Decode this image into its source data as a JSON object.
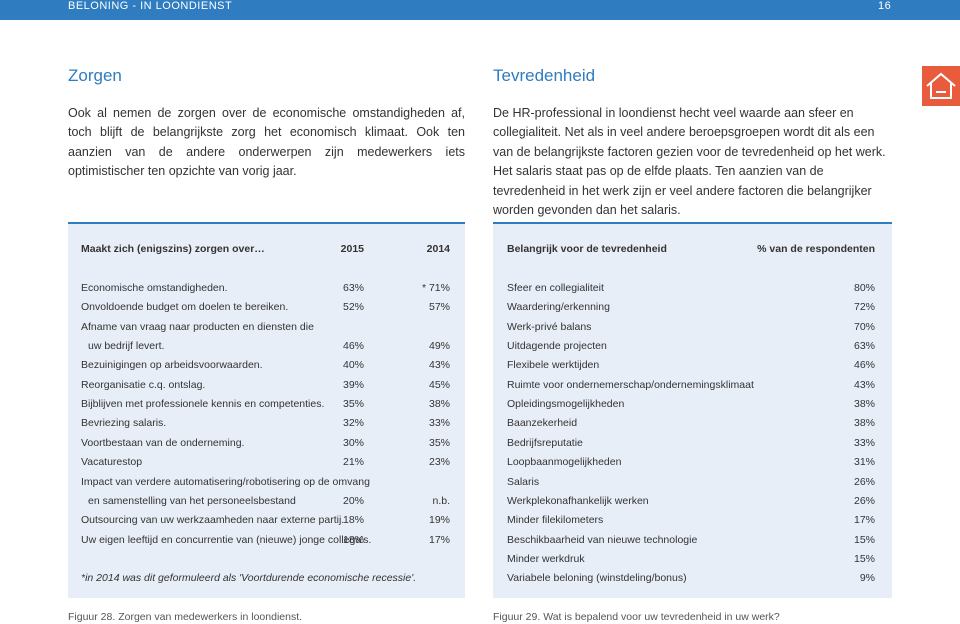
{
  "header": {
    "section": "BELONING - IN LOONDIENST",
    "page": "16"
  },
  "left": {
    "title": "Zorgen",
    "text": "Ook al nemen de zorgen over de economische omstandigheden af, toch blijft de belangrijkste zorg het economisch klimaat. Ook ten aanzien van de andere onderwerpen zijn medewerkers iets optimistischer ten opzichte van vorig jaar."
  },
  "right": {
    "title": "Tevredenheid",
    "text": "De HR-professional in loondienst hecht veel waarde aan sfeer en collegialiteit. Net als in veel andere beroepsgroepen wordt dit als een van de belangrijkste factoren gezien voor de tevredenheid op het werk. Het salaris staat pas op de elfde plaats. Ten aanzien van de tevredenheid in het werk zijn er veel andere factoren die belangrijker worden gevonden dan het salaris."
  },
  "table_left": {
    "headers": [
      "Maakt zich (enigszins) zorgen over…",
      "2015",
      "2014"
    ],
    "rows": [
      {
        "label": [
          "Economische omstandigheden."
        ],
        "v1": "63%",
        "v2": "* 71%"
      },
      {
        "label": [
          "Onvoldoende budget om doelen te bereiken."
        ],
        "v1": "52%",
        "v2": "57%"
      },
      {
        "label": [
          "Afname van vraag naar producten en diensten die",
          "uw bedrijf levert."
        ],
        "v1": "46%",
        "v2": "49%"
      },
      {
        "label": [
          "Bezuinigingen op arbeidsvoorwaarden."
        ],
        "v1": "40%",
        "v2": "43%"
      },
      {
        "label": [
          "Reorganisatie c.q. ontslag."
        ],
        "v1": "39%",
        "v2": "45%"
      },
      {
        "label": [
          "Bijblijven met professionele kennis en competenties."
        ],
        "v1": "35%",
        "v2": "38%"
      },
      {
        "label": [
          "Bevriezing salaris."
        ],
        "v1": "32%",
        "v2": "33%"
      },
      {
        "label": [
          "Voortbestaan van de onderneming."
        ],
        "v1": "30%",
        "v2": "35%"
      },
      {
        "label": [
          "Vacaturestop"
        ],
        "v1": "21%",
        "v2": "23%"
      },
      {
        "label": [
          "Impact van verdere automatisering/robotisering op de omvang",
          "en samenstelling van het personeelsbestand"
        ],
        "v1": "20%",
        "v2": "n.b."
      },
      {
        "label": [
          "Outsourcing van uw werkzaamheden naar externe partij."
        ],
        "v1": "18%",
        "v2": "19%"
      },
      {
        "label": [
          "Uw eigen leeftijd en concurrentie van (nieuwe) jonge collega's."
        ],
        "v1": "18%",
        "v2": "17%"
      }
    ],
    "footnote": "*in 2014 was dit geformuleerd als 'Voortdurende economische recessie'.",
    "caption": "Figuur 28. Zorgen van medewerkers in loondienst."
  },
  "table_right": {
    "headers": [
      "Belangrijk voor de tevredenheid",
      "% van de respondenten"
    ],
    "rows": [
      [
        "Sfeer en collegialiteit",
        "80%"
      ],
      [
        "Waardering/erkenning",
        "72%"
      ],
      [
        "Werk-privé balans",
        "70%"
      ],
      [
        "Uitdagende projecten",
        "63%"
      ],
      [
        "Flexibele werktijden",
        "46%"
      ],
      [
        "Ruimte voor ondernemerschap/ondernemingsklimaat",
        "43%"
      ],
      [
        "Opleidingsmogelijkheden",
        "38%"
      ],
      [
        "Baanzekerheid",
        "38%"
      ],
      [
        "Bedrijfsreputatie",
        "33%"
      ],
      [
        "Loopbaanmogelijkheden",
        "31%"
      ],
      [
        "Salaris",
        "26%"
      ],
      [
        "Werkplekonafhankelijk werken",
        "26%"
      ],
      [
        "Minder filekilometers",
        "17%"
      ],
      [
        "Beschikbaarheid van nieuwe technologie",
        "15%"
      ],
      [
        "Minder werkdruk",
        "15%"
      ],
      [
        "Variabele beloning (winstdeling/bonus)",
        "9%"
      ]
    ],
    "caption": "Figuur 29. Wat is bepalend voor uw tevredenheid in uw werk?"
  }
}
